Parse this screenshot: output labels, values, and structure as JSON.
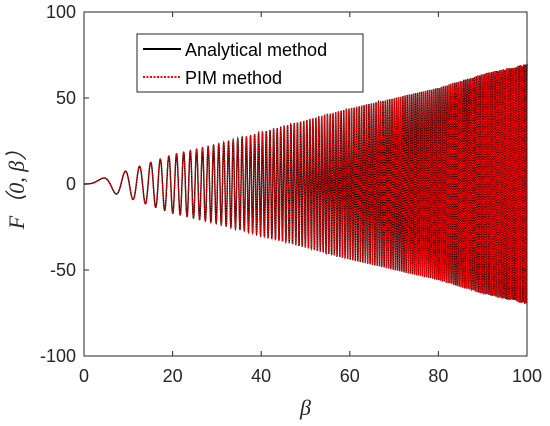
{
  "chart_data": {
    "type": "line",
    "xlabel": "β",
    "ylabel": "F（0,  β）",
    "xlim": [
      0,
      100
    ],
    "ylim": [
      -100,
      100
    ],
    "xticks": [
      0,
      20,
      40,
      60,
      80,
      100
    ],
    "yticks": [
      -100,
      -50,
      0,
      50,
      100
    ],
    "xtick_labels": [
      "0",
      "20",
      "40",
      "60",
      "80",
      "100"
    ],
    "ytick_labels": [
      "-100",
      "-50",
      "0",
      "50",
      "100"
    ],
    "grid": false,
    "legend_position": "top-left",
    "series": [
      {
        "name": "Analytical method",
        "color": "#000000",
        "style": "solid",
        "envelope": {
          "x": [
            0,
            5,
            10,
            20,
            30,
            40,
            50,
            60,
            70,
            80,
            90,
            100
          ],
          "upper": [
            0,
            4,
            8,
            17,
            23,
            30,
            37,
            44,
            50,
            56,
            64,
            70
          ],
          "lower": [
            0,
            -4,
            -8,
            -17,
            -23,
            -30,
            -37,
            -44,
            -50,
            -56,
            -64,
            -70
          ]
        }
      },
      {
        "name": "PIM method",
        "color": "#ff0000",
        "style": "dotted",
        "envelope": {
          "x": [
            0,
            5,
            10,
            20,
            30,
            40,
            50,
            60,
            70,
            80,
            90,
            100
          ],
          "upper": [
            0,
            4,
            8,
            17,
            23,
            30,
            37,
            44,
            50,
            56,
            64,
            70
          ],
          "lower": [
            0,
            -4,
            -8,
            -17,
            -23,
            -30,
            -37,
            -44,
            -50,
            -56,
            -64,
            -70
          ]
        }
      }
    ]
  }
}
